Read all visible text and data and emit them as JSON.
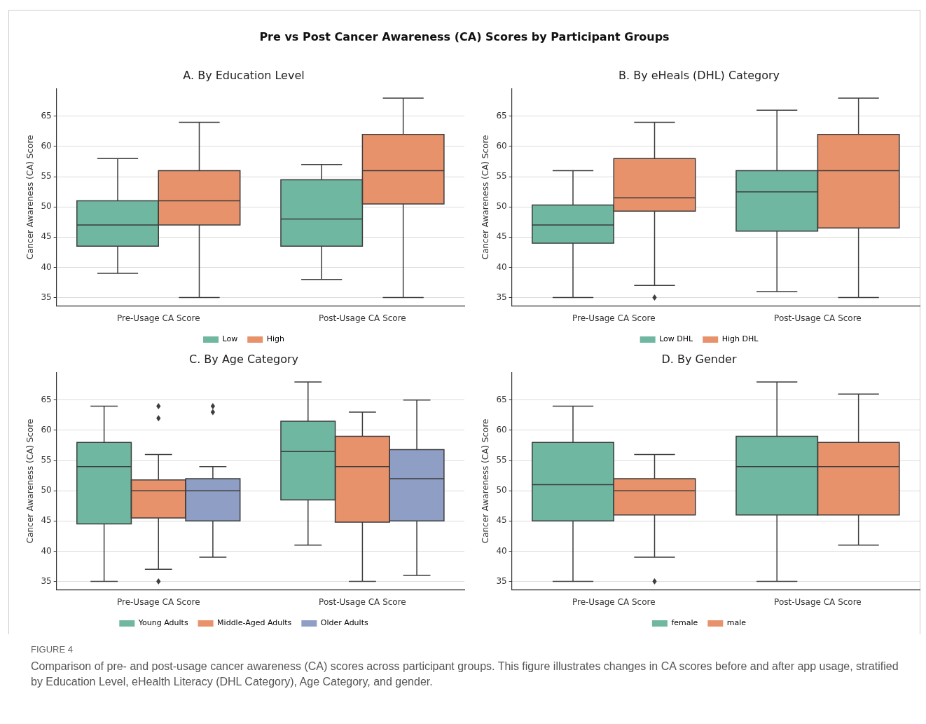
{
  "chart_data": [
    {
      "type": "box",
      "title": "A. By Education Level",
      "ylabel": "Cancer Awareness (CA) Score",
      "categories": [
        "Pre-Usage CA Score",
        "Post-Usage CA Score"
      ],
      "ylim": [
        33.6,
        69.6
      ],
      "yticks": [
        35,
        40,
        45,
        50,
        55,
        60,
        65
      ],
      "grid": "y",
      "legend": "bottom",
      "annotations": [
        "Pre vs Post Cancer Awareness (CA) Scores by Participant Groups"
      ],
      "series": [
        {
          "name": "Low",
          "color": "#6fb7a0",
          "boxes": [
            {
              "low": 39,
              "q1": 43.5,
              "median": 47,
              "q3": 51,
              "high": 58
            },
            {
              "low": 38,
              "q1": 43.5,
              "median": 48,
              "q3": 54.5,
              "high": 57
            }
          ]
        },
        {
          "name": "High",
          "color": "#e8926c",
          "boxes": [
            {
              "low": 35,
              "q1": 47,
              "median": 51,
              "q3": 56,
              "high": 64
            },
            {
              "low": 35,
              "q1": 50.5,
              "median": 56,
              "q3": 62,
              "high": 68
            }
          ]
        }
      ]
    },
    {
      "type": "box",
      "title": "B. By eHeals (DHL) Category",
      "ylabel": "Cancer Awareness (CA) Score",
      "categories": [
        "Pre-Usage CA Score",
        "Post-Usage CA Score"
      ],
      "ylim": [
        33.6,
        69.6
      ],
      "yticks": [
        35,
        40,
        45,
        50,
        55,
        60,
        65
      ],
      "grid": "y",
      "legend": "bottom",
      "series": [
        {
          "name": "Low DHL",
          "color": "#6fb7a0",
          "boxes": [
            {
              "low": 35,
              "q1": 44,
              "median": 47,
              "q3": 50.3,
              "high": 56
            },
            {
              "low": 36,
              "q1": 46,
              "median": 52.5,
              "q3": 56,
              "high": 66
            }
          ]
        },
        {
          "name": "High DHL",
          "color": "#e8926c",
          "boxes": [
            {
              "low": 37,
              "q1": 49.3,
              "median": 51.5,
              "q3": 58,
              "high": 64,
              "outliers": [
                35
              ]
            },
            {
              "low": 35,
              "q1": 46.5,
              "median": 56,
              "q3": 62,
              "high": 68
            }
          ]
        }
      ]
    },
    {
      "type": "box",
      "title": "C. By Age Category",
      "ylabel": "Cancer Awareness (CA) Score",
      "categories": [
        "Pre-Usage CA Score",
        "Post-Usage CA Score"
      ],
      "ylim": [
        33.6,
        69.6
      ],
      "yticks": [
        35,
        40,
        45,
        50,
        55,
        60,
        65
      ],
      "grid": "y",
      "legend": "bottom",
      "series": [
        {
          "name": "Young Adults",
          "color": "#6fb7a0",
          "boxes": [
            {
              "low": 35,
              "q1": 44.5,
              "median": 54,
              "q3": 58,
              "high": 64
            },
            {
              "low": 41,
              "q1": 48.5,
              "median": 56.5,
              "q3": 61.5,
              "high": 68
            }
          ]
        },
        {
          "name": "Middle-Aged Adults",
          "color": "#e8926c",
          "boxes": [
            {
              "low": 37,
              "q1": 45.5,
              "median": 50,
              "q3": 51.8,
              "high": 56,
              "outliers": [
                35,
                62,
                64
              ]
            },
            {
              "low": 35,
              "q1": 44.8,
              "median": 54,
              "q3": 59,
              "high": 63
            }
          ]
        },
        {
          "name": "Older Adults",
          "color": "#8f9ec4",
          "boxes": [
            {
              "low": 39,
              "q1": 45,
              "median": 50,
              "q3": 52,
              "high": 54,
              "outliers": [
                63,
                64
              ]
            },
            {
              "low": 36,
              "q1": 45,
              "median": 52,
              "q3": 56.8,
              "high": 65
            }
          ]
        }
      ]
    },
    {
      "type": "box",
      "title": "D. By Gender",
      "ylabel": "Cancer Awareness (CA) Score",
      "categories": [
        "Pre-Usage CA Score",
        "Post-Usage CA Score"
      ],
      "ylim": [
        33.6,
        69.6
      ],
      "yticks": [
        35,
        40,
        45,
        50,
        55,
        60,
        65
      ],
      "grid": "y",
      "legend": "bottom",
      "annotations": [
        "FIGURE 4",
        "Comparison of pre- and post-usage cancer awareness (CA) scores across participant groups. This figure illustrates changes in CA scores before and after app usage, stratified by Education Level, eHealth Literacy (DHL Category), Age Category, and gender."
      ],
      "series": [
        {
          "name": "female",
          "color": "#6fb7a0",
          "boxes": [
            {
              "low": 35,
              "q1": 45,
              "median": 51,
              "q3": 58,
              "high": 64
            },
            {
              "low": 35,
              "q1": 46,
              "median": 54,
              "q3": 59,
              "high": 68
            }
          ]
        },
        {
          "name": "male",
          "color": "#e8926c",
          "boxes": [
            {
              "low": 39,
              "q1": 46,
              "median": 50,
              "q3": 52,
              "high": 56,
              "outliers": [
                35
              ]
            },
            {
              "low": 41,
              "q1": 46,
              "median": 54,
              "q3": 58,
              "high": 66
            }
          ]
        }
      ]
    }
  ]
}
